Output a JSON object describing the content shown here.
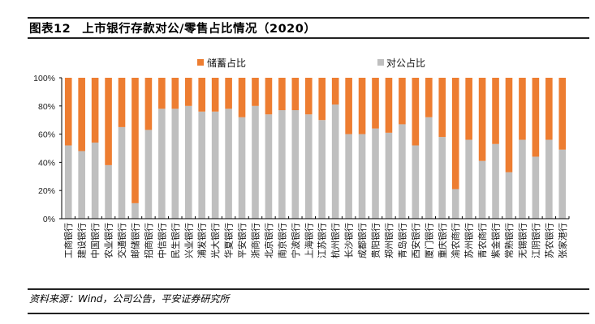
{
  "header": {
    "figure_label": "图表12",
    "title_text": "上市银行存款对公/零售占比情况（2020）"
  },
  "footer": {
    "source": "资料来源：Wind，公司公告，平安证券研究所"
  },
  "colors": {
    "savings": "#ED7D31",
    "corporate": "#BFBFBF"
  },
  "chart_data": {
    "type": "bar",
    "stacked": true,
    "title": "上市银行存款对公/零售占比情况（2020）",
    "xlabel": "",
    "ylabel": "",
    "ylim": [
      0,
      100
    ],
    "yticks": [
      "0%",
      "20%",
      "40%",
      "60%",
      "80%",
      "100%"
    ],
    "legend": {
      "position": "top",
      "entries": [
        "储蓄占比",
        "对公占比"
      ]
    },
    "grid": false,
    "categories": [
      "工商银行",
      "建设银行",
      "中国银行",
      "农业银行",
      "交通银行",
      "邮储银行",
      "招商银行",
      "中信银行",
      "民生银行",
      "兴业银行",
      "浦发银行",
      "光大银行",
      "华夏银行",
      "平安银行",
      "浙商银行",
      "北京银行",
      "南京银行",
      "宁波银行",
      "上海银行",
      "江苏银行",
      "杭州银行",
      "长沙银行",
      "成都银行",
      "贵阳银行",
      "郑州银行",
      "青岛银行",
      "西安银行",
      "厦门银行",
      "重庆银行",
      "渝农商行",
      "苏州银行",
      "青农商行",
      "紫金银行",
      "常熟银行",
      "无锡银行",
      "江阴银行",
      "苏农银行",
      "张家港行"
    ],
    "series": [
      {
        "name": "对公占比",
        "values": [
          52,
          48,
          54,
          38,
          65,
          11,
          63,
          78,
          78,
          80,
          76,
          76,
          78,
          72,
          80,
          74,
          77,
          77,
          74,
          70,
          81,
          60,
          60,
          64,
          61,
          67,
          52,
          72,
          58,
          21,
          56,
          41,
          53,
          33,
          56,
          44,
          56,
          49
        ]
      },
      {
        "name": "储蓄占比",
        "values": [
          48,
          52,
          46,
          62,
          35,
          89,
          37,
          22,
          22,
          20,
          24,
          24,
          22,
          28,
          20,
          26,
          23,
          23,
          26,
          30,
          19,
          40,
          40,
          36,
          39,
          33,
          48,
          28,
          42,
          79,
          44,
          59,
          47,
          67,
          44,
          56,
          44,
          51
        ]
      }
    ]
  }
}
